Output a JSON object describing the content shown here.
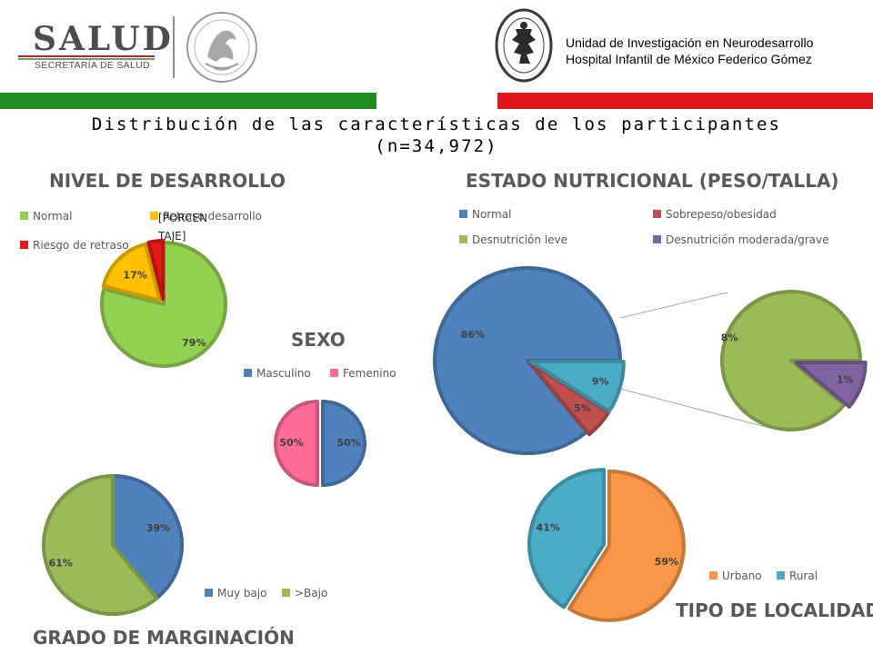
{
  "header": {
    "logo_word": "SALUD",
    "logo_sub": "SECRETARÍA DE SALUD",
    "institution_line1": "Unidad de Investigación en Neurodesarrollo",
    "institution_line2": "Hospital Infantil de México Federico Gómez",
    "bar_colors": [
      "#1e8c1e",
      "#e2161c"
    ]
  },
  "slide_title_line1": "Distribución de las características de los participantes",
  "slide_title_line2": "(n=34,972)",
  "chart_data": [
    {
      "id": "nivel",
      "type": "pie",
      "title": "NIVEL DE DESARROLLO",
      "legend": [
        "Normal",
        "Riesgo de retraso",
        "Retraso desarrollo"
      ],
      "overlay_label": "[PORCEN TAJE]",
      "slices": [
        {
          "name": "Normal",
          "value": 79,
          "label": "79%",
          "color": "#92d050"
        },
        {
          "name": "Retraso desarrollo",
          "value": 17,
          "label": "17%",
          "color": "#ffc000"
        },
        {
          "name": "Riesgo de retraso",
          "value": 4,
          "label": "",
          "color": "#e81818"
        }
      ]
    },
    {
      "id": "sexo",
      "type": "pie",
      "title": "SEXO",
      "legend": [
        "Masculino",
        "Femenino"
      ],
      "slices": [
        {
          "name": "Masculino",
          "value": 50,
          "label": "50%",
          "color": "#4f81bd"
        },
        {
          "name": "Femenino",
          "value": 50,
          "label": "50%",
          "color": "#ff6b98"
        }
      ]
    },
    {
      "id": "nutricion",
      "type": "pie",
      "title": "ESTADO NUTRICIONAL (PESO/TALLA)",
      "legend": [
        "Normal",
        "Sobrepeso/obesidad",
        "Desnutrición leve",
        "Desnutrición moderada/grave"
      ],
      "slices": [
        {
          "name": "Normal",
          "value": 86,
          "label": "86%",
          "color": "#4f81bd"
        },
        {
          "name": "Sobrepeso/obesidad",
          "value": 5,
          "label": "5%",
          "color": "#c0504d"
        },
        {
          "name": "Desnutrición",
          "value": 9,
          "label": "9%",
          "color": "#4bacc6"
        }
      ],
      "detail_slices": [
        {
          "name": "Desnutrición leve",
          "value": 8,
          "label": "8%",
          "color": "#9bbb59"
        },
        {
          "name": "Desnutrición moderada/grave",
          "value": 1,
          "label": "1%",
          "color": "#8064a2"
        }
      ]
    },
    {
      "id": "marginacion",
      "type": "pie",
      "title": "GRADO DE MARGINACIÓN",
      "legend": [
        "Muy bajo",
        ">Bajo"
      ],
      "slices": [
        {
          "name": "Muy bajo",
          "value": 39,
          "label": "39%",
          "color": "#4f81bd"
        },
        {
          "name": ">Bajo",
          "value": 61,
          "label": "61%",
          "color": "#9bbb59"
        }
      ]
    },
    {
      "id": "localidad",
      "type": "pie",
      "title": "TIPO DE LOCALIDAD",
      "legend": [
        "Urbano",
        "Rural"
      ],
      "slices": [
        {
          "name": "Urbano",
          "value": 59,
          "label": "59%",
          "color": "#f79646"
        },
        {
          "name": "Rural",
          "value": 41,
          "label": "41%",
          "color": "#4bacc6"
        }
      ]
    }
  ]
}
